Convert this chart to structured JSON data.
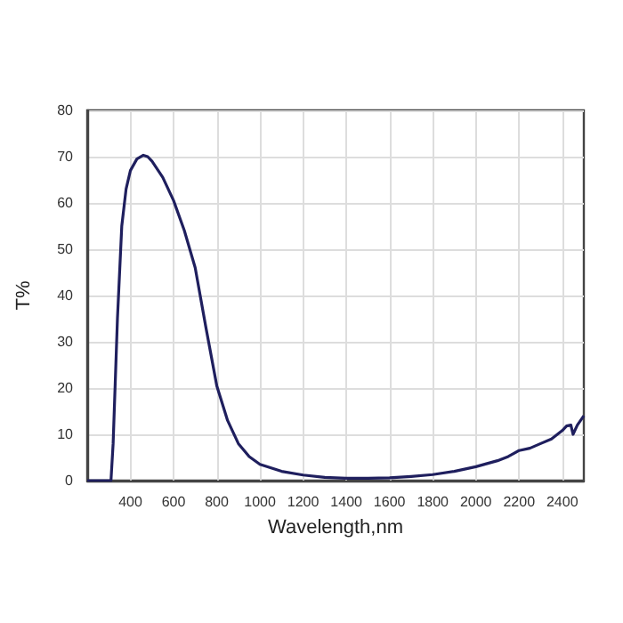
{
  "chart_data": {
    "type": "line",
    "xlabel": "Wavelength,nm",
    "ylabel": "T%",
    "x": [
      200,
      250,
      300,
      310,
      320,
      340,
      360,
      380,
      400,
      430,
      460,
      480,
      500,
      550,
      600,
      650,
      700,
      750,
      800,
      850,
      900,
      950,
      1000,
      1100,
      1200,
      1300,
      1400,
      1500,
      1600,
      1700,
      1800,
      1900,
      2000,
      2100,
      2150,
      2200,
      2250,
      2300,
      2350,
      2400,
      2420,
      2440,
      2450,
      2470,
      2500
    ],
    "series": [
      {
        "color": "#1f1f5e",
        "values": [
          0,
          0,
          0,
          0,
          8,
          35,
          55,
          63,
          67,
          69.5,
          70.3,
          70,
          69,
          65.5,
          60.5,
          54,
          46,
          33,
          20.5,
          13,
          8,
          5.2,
          3.5,
          2,
          1.2,
          0.7,
          0.5,
          0.5,
          0.6,
          0.9,
          1.3,
          2,
          3,
          4.3,
          5.2,
          6.5,
          7,
          8,
          9,
          10.8,
          11.8,
          12,
          10,
          12,
          14
        ]
      }
    ],
    "xlim": [
      200,
      2500
    ],
    "xticks": [
      400,
      600,
      800,
      1000,
      1200,
      1400,
      1600,
      1800,
      2000,
      2200,
      2400
    ],
    "ylim": [
      0,
      80
    ],
    "yticks": [
      0,
      10,
      20,
      30,
      40,
      50,
      60,
      70,
      80
    ],
    "grid": true,
    "marker": "none",
    "line_style": "solid"
  }
}
